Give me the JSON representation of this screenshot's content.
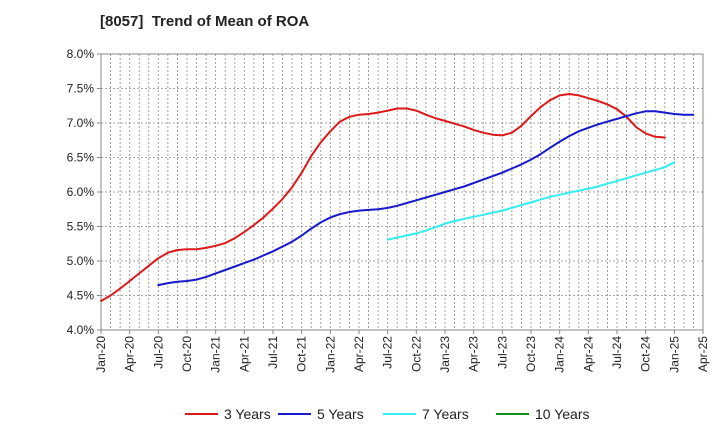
{
  "chart_data": {
    "type": "line",
    "title": "[8057]  Trend of Mean of ROA",
    "xlabel": "",
    "ylabel": "",
    "x_tick_labels": [
      "Jan-20",
      "Apr-20",
      "Jul-20",
      "Oct-20",
      "Jan-21",
      "Apr-21",
      "Jul-21",
      "Oct-21",
      "Jan-22",
      "Apr-22",
      "Jul-22",
      "Oct-22",
      "Jan-23",
      "Apr-23",
      "Jul-23",
      "Oct-23",
      "Jan-24",
      "Apr-24",
      "Jul-24",
      "Oct-24",
      "Jan-25",
      "Apr-25"
    ],
    "y_tick_labels": [
      "4.0%",
      "4.5%",
      "5.0%",
      "5.5%",
      "6.0%",
      "6.5%",
      "7.0%",
      "7.5%",
      "8.0%"
    ],
    "ylim": [
      4.0,
      8.0
    ],
    "y_unit": "%",
    "grid": true,
    "legend_position": "bottom",
    "series": [
      {
        "name": "3 Years",
        "color": "#dd1a1a",
        "start": "Jan-20",
        "values": [
          4.42,
          4.5,
          4.6,
          4.71,
          4.82,
          4.93,
          5.04,
          5.12,
          5.16,
          5.17,
          5.17,
          5.19,
          5.22,
          5.26,
          5.33,
          5.42,
          5.52,
          5.63,
          5.76,
          5.9,
          6.07,
          6.28,
          6.52,
          6.72,
          6.88,
          7.02,
          7.09,
          7.12,
          7.13,
          7.15,
          7.18,
          7.21,
          7.21,
          7.18,
          7.12,
          7.07,
          7.03,
          6.99,
          6.95,
          6.9,
          6.86,
          6.83,
          6.82,
          6.86,
          6.96,
          7.1,
          7.23,
          7.33,
          7.4,
          7.42,
          7.4,
          7.36,
          7.32,
          7.27,
          7.2,
          7.09,
          6.94,
          6.85,
          6.8,
          6.79
        ]
      },
      {
        "name": "5 Years",
        "color": "#1818cc",
        "start": "Jul-20",
        "values": [
          4.65,
          4.68,
          4.7,
          4.71,
          4.73,
          4.77,
          4.82,
          4.87,
          4.92,
          4.97,
          5.02,
          5.08,
          5.14,
          5.21,
          5.28,
          5.37,
          5.47,
          5.56,
          5.63,
          5.68,
          5.71,
          5.73,
          5.74,
          5.75,
          5.77,
          5.8,
          5.84,
          5.88,
          5.92,
          5.96,
          6.0,
          6.04,
          6.08,
          6.13,
          6.18,
          6.23,
          6.28,
          6.34,
          6.4,
          6.47,
          6.55,
          6.64,
          6.73,
          6.81,
          6.88,
          6.93,
          6.98,
          7.02,
          7.06,
          7.1,
          7.14,
          7.17,
          7.17,
          7.15,
          7.13,
          7.12,
          7.12
        ]
      },
      {
        "name": "7 Years",
        "color": "#33eeee",
        "start": "Jul-22",
        "values": [
          5.31,
          5.34,
          5.37,
          5.4,
          5.44,
          5.49,
          5.54,
          5.58,
          5.61,
          5.64,
          5.67,
          5.7,
          5.73,
          5.77,
          5.81,
          5.85,
          5.89,
          5.93,
          5.96,
          5.99,
          6.02,
          6.05,
          6.08,
          6.12,
          6.16,
          6.2,
          6.24,
          6.28,
          6.32,
          6.36,
          6.43
        ]
      },
      {
        "name": "10 Years",
        "color": "#1a8c1a",
        "start": "Jan-25",
        "values": []
      }
    ]
  }
}
